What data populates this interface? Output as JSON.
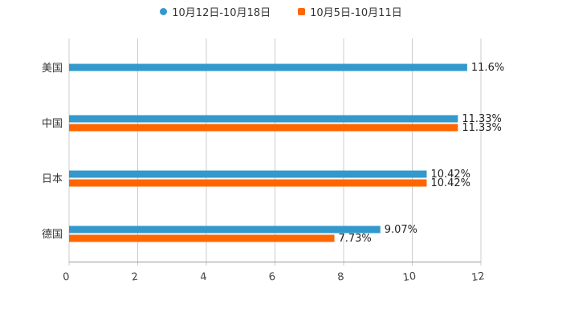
{
  "chart_data": {
    "type": "bar",
    "orientation": "horizontal",
    "categories": [
      "美国",
      "中国",
      "日本",
      "德国"
    ],
    "series": [
      {
        "name": "10月12日-10月18日",
        "color": "#3399cc",
        "values": [
          11.6,
          11.33,
          10.42,
          9.07
        ],
        "labels": [
          "11.6%",
          "11.33%",
          "10.42%",
          "9.07%"
        ]
      },
      {
        "name": "10月5日-10月11日",
        "color": "#ff6600",
        "values": [
          null,
          11.33,
          10.42,
          7.73
        ],
        "labels": [
          "",
          "11.33%",
          "10.42%",
          "7.73%"
        ]
      }
    ],
    "x_ticks": [
      "0",
      "2",
      "4",
      "6",
      "8",
      "10",
      "12"
    ],
    "xlim": [
      0,
      12
    ],
    "grid": true,
    "legend_position": "top-center"
  }
}
